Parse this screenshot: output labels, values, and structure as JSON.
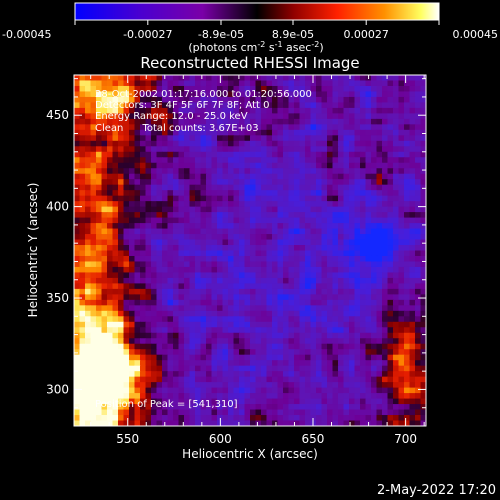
{
  "colorbar": {
    "ticks": [
      "-0.00045",
      "-0.00027",
      "-8.9e-05",
      "8.9e-05",
      "0.00027",
      "0.00045"
    ],
    "range": [
      -0.00045,
      0.00045
    ],
    "unit_prefix": "(photons cm",
    "unit_sup1": "-2",
    "unit_mid": " s",
    "unit_sup2": "-1",
    "unit_mid2": " asec",
    "unit_sup3": "-2",
    "unit_suffix": ")",
    "colors": [
      "#0000ff",
      "#5a00c8",
      "#8a00a0",
      "#000000",
      "#a00000",
      "#ff3000",
      "#ffa000",
      "#ffff80",
      "#ffffff"
    ]
  },
  "chart_data": {
    "type": "heatmap",
    "title": "Reconstructed RHESSI Image",
    "xlabel": "Heliocentric X (arcsec)",
    "ylabel": "Heliocentric Y (arcsec)",
    "xlim": [
      521,
      711
    ],
    "ylim": [
      280,
      472
    ],
    "xticks": [
      "550",
      "600",
      "650",
      "700"
    ],
    "yticks": [
      "300",
      "350",
      "400",
      "450"
    ],
    "annotations": [
      "28-Oct-2002 01:17:16.000 to 01:20:56.000",
      "Detectors: 3F 4F 5F 6F 7F 8F; Att 0",
      "Energy Range: 12.0 - 25.0 keV",
      "Clean      Total counts: 3.67E+03"
    ],
    "peak_label": "Position of Peak = [541,310]",
    "peak": [
      541,
      310
    ]
  },
  "footer": {
    "date": "2-May-2022 17:20"
  }
}
